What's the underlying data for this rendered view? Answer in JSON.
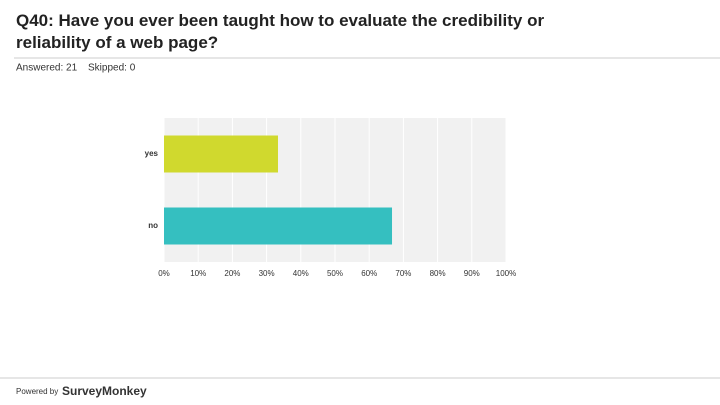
{
  "answered_label": "Answered: 21",
  "skipped_label": "Skipped: 0",
  "footer_label": "Powered by",
  "brand": "SurveyMonkey",
  "chart_data": {
    "type": "bar",
    "orientation": "horizontal",
    "title": "Q40: Have you ever been taught how to evaluate the credibility or reliability of a web page?",
    "categories": [
      "yes",
      "no"
    ],
    "values": [
      33.33,
      66.67
    ],
    "colors": [
      "#d0d92e",
      "#35bfc0"
    ],
    "xlim": [
      0,
      100
    ],
    "xticks": [
      {
        "value": 0,
        "label": "0%"
      },
      {
        "value": 10,
        "label": "10%"
      },
      {
        "value": 20,
        "label": "20%"
      },
      {
        "value": 30,
        "label": "30%"
      },
      {
        "value": 40,
        "label": "40%"
      },
      {
        "value": 50,
        "label": "50%"
      },
      {
        "value": 60,
        "label": "60%"
      },
      {
        "value": 70,
        "label": "70%"
      },
      {
        "value": 80,
        "label": "80%"
      },
      {
        "value": 90,
        "label": "90%"
      },
      {
        "value": 100,
        "label": "100%"
      }
    ],
    "grid": true
  }
}
